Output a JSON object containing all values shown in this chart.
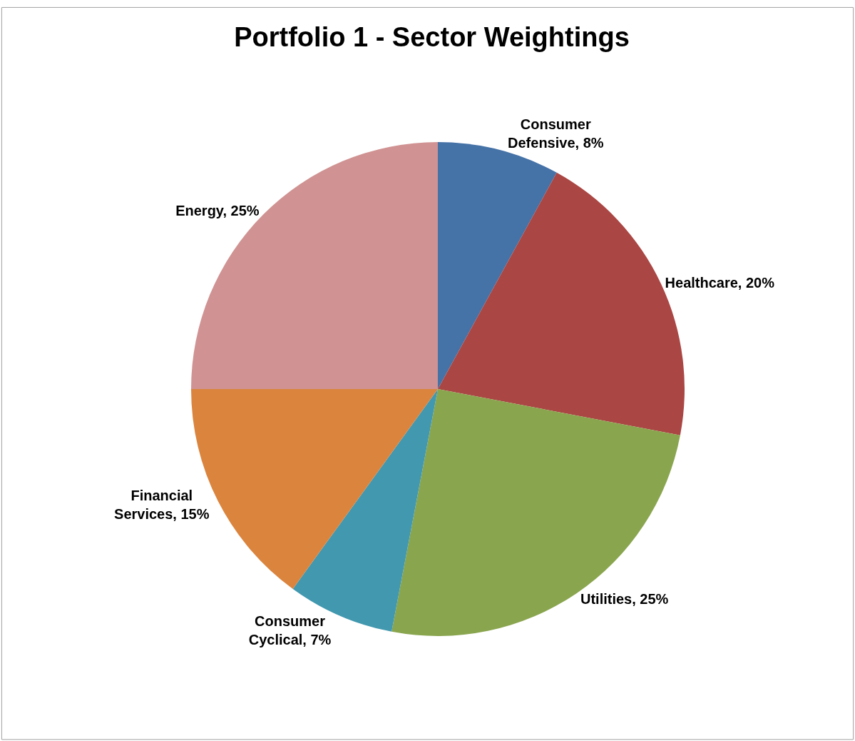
{
  "chart_data": {
    "type": "pie",
    "title": "Portfolio 1 - Sector Weightings",
    "categories": [
      "Consumer Defensive",
      "Healthcare",
      "Utilities",
      "Consumer Cyclical",
      "Financial Services",
      "Energy"
    ],
    "values": [
      8,
      20,
      25,
      7,
      15,
      25
    ],
    "value_labels": [
      "8%",
      "20%",
      "25%",
      "7%",
      "15%",
      "25%"
    ],
    "colors": [
      "#4572a7",
      "#aa4643",
      "#89a54e",
      "#4198af",
      "#db843d",
      "#d09292"
    ],
    "legend": false
  }
}
